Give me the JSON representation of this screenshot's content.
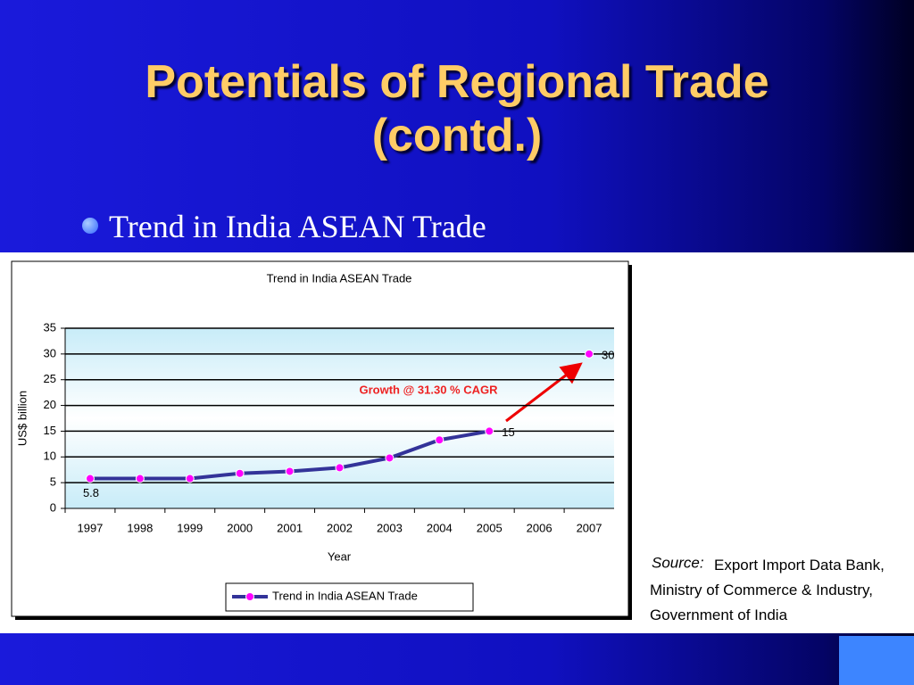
{
  "slide": {
    "title": "Potentials of Regional Trade (contd.)",
    "bullet": "Trend in India ASEAN Trade",
    "source_label": "Source:",
    "source_text": "Export Import Data Bank, Ministry of Commerce & Industry, Government of India"
  },
  "chart_data": {
    "type": "line",
    "title": "Trend in India ASEAN Trade",
    "x_label": "Year",
    "y_label": "US$ billion",
    "categories": [
      "1997",
      "1998",
      "1999",
      "2000",
      "2001",
      "2002",
      "2003",
      "2004",
      "2005",
      "2006",
      "2007"
    ],
    "series": [
      {
        "name": "Trend in India ASEAN Trade",
        "color": "#333399",
        "marker_color": "#ff00ff",
        "values": [
          5.8,
          5.8,
          5.8,
          6.8,
          7.2,
          7.9,
          9.8,
          13.3,
          15,
          null,
          30
        ],
        "value_labels": [
          "5.8",
          null,
          null,
          null,
          null,
          null,
          null,
          null,
          "15",
          null,
          "30"
        ]
      }
    ],
    "annotation": "Growth @ 31.30 % CAGR",
    "ylim": [
      0,
      35
    ],
    "yticks": [
      0,
      5,
      10,
      15,
      20,
      25,
      30,
      35
    ],
    "grid": true,
    "legend": "bottom"
  }
}
